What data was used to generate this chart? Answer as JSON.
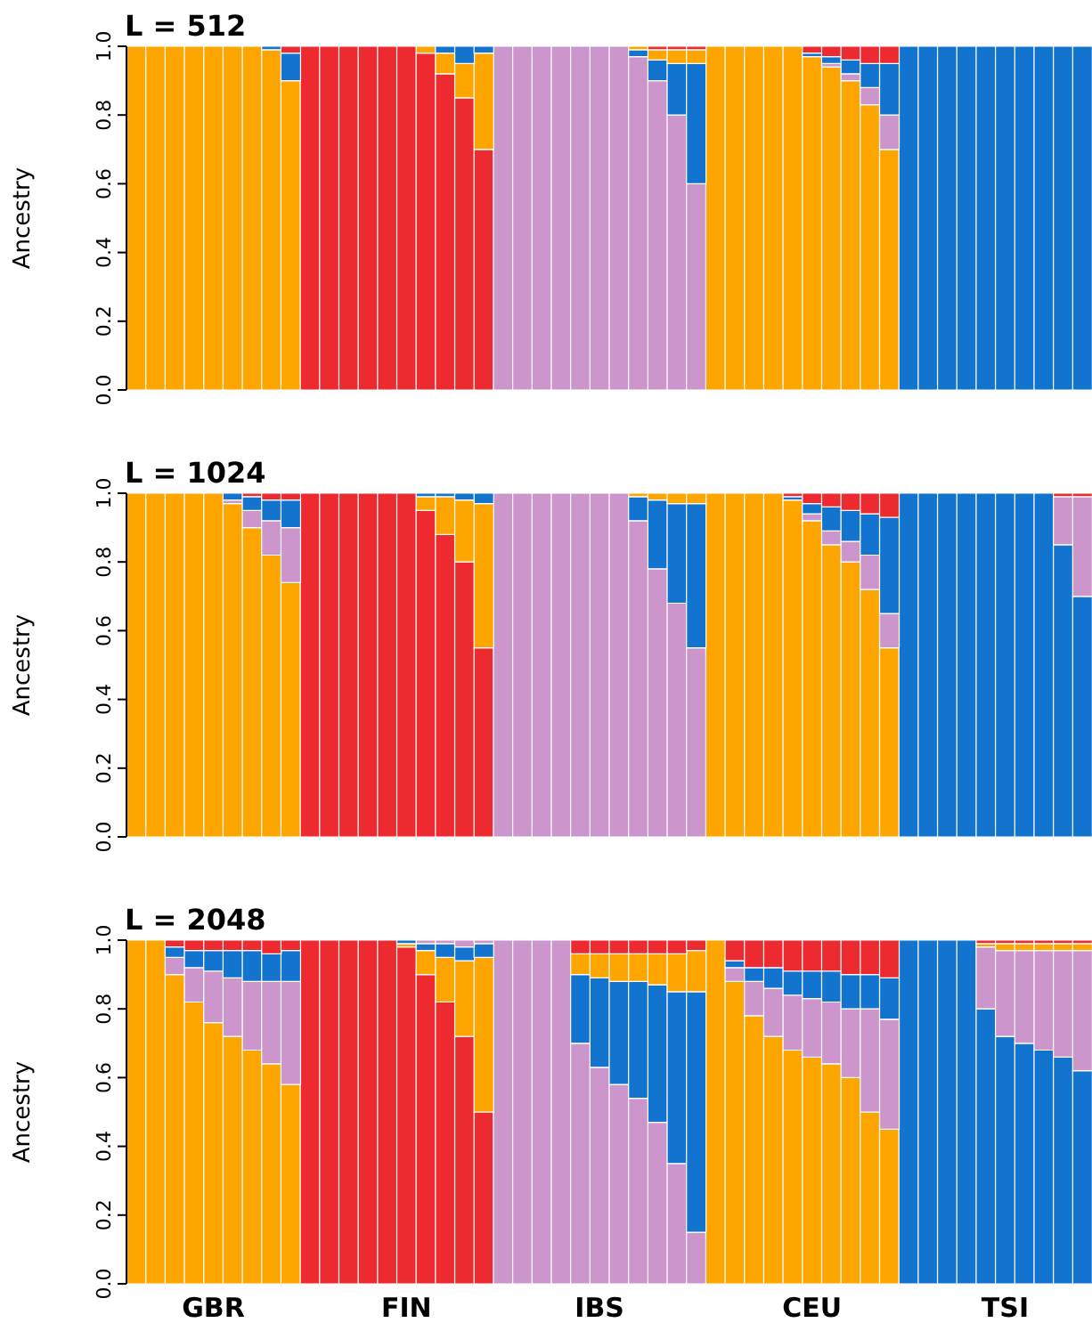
{
  "chart_data": [
    {
      "type": "bar",
      "title": "L = 512",
      "ylabel": "Ancestry",
      "stacked": true,
      "tick_labels": "y",
      "grid": false,
      "legend": false,
      "categories": [
        null,
        null,
        null,
        null,
        null,
        null,
        null,
        null,
        null,
        null,
        null,
        null,
        null,
        null,
        null,
        null,
        null,
        null,
        null,
        null,
        null,
        null,
        null,
        null,
        null,
        null,
        null,
        null,
        null,
        null,
        null,
        null,
        null,
        null,
        null,
        null,
        null,
        null,
        null,
        null,
        null,
        null,
        null,
        null,
        null,
        null,
        null,
        null,
        null,
        null
      ],
      "ylim": [
        0,
        1
      ],
      "yticks": [
        {
          "value": 0,
          "label": "0.0"
        },
        {
          "value": 0.2,
          "label": "0.2"
        },
        {
          "value": 0.4,
          "label": "0.4"
        },
        {
          "value": 0.6,
          "label": "0.6"
        },
        {
          "value": 0.8,
          "label": "0.8"
        },
        {
          "value": 1,
          "label": "1.0"
        }
      ],
      "series": [
        {
          "colors": [
            "#ffa500",
            "#ffa500",
            "#ffa500",
            "#ffa500",
            "#ffa500",
            "#ffa500",
            "#ffa500",
            "#ffa500",
            "#ffa500",
            "#ec2a2f",
            "#ec2a2f",
            "#ec2a2f",
            "#ec2a2f",
            "#ec2a2f",
            "#ec2a2f",
            "#ec2a2f",
            "#ec2a2f",
            "#ec2a2f",
            "#ec2a2f",
            "#cc95cc",
            "#cc95cc",
            "#cc95cc",
            "#cc95cc",
            "#cc95cc",
            "#cc95cc",
            "#cc95cc",
            "#cc95cc",
            "#cc95cc",
            "#cc95cc",
            "#cc95cc",
            "#ffa500",
            "#ffa500",
            "#ffa500",
            "#ffa500",
            "#ffa500",
            "#ffa500",
            "#ffa500",
            "#ffa500",
            "#ffa500",
            "#ffa500",
            "#1374cf",
            "#1374cf",
            "#1374cf",
            "#1374cf",
            "#1374cf",
            "#1374cf",
            "#1374cf",
            "#1374cf",
            "#1374cf",
            "#1374cf"
          ],
          "values": [
            1,
            1,
            1,
            1,
            1,
            1,
            1,
            0.99,
            0.9,
            1,
            1,
            1,
            1,
            1,
            1,
            0.98,
            0.92,
            0.85,
            0.7,
            1,
            1,
            1,
            1,
            1,
            1,
            1,
            0.97,
            0.9,
            0.8,
            0.6,
            1,
            1,
            1,
            1,
            1,
            0.97,
            0.94,
            0.9,
            0.83,
            0.7,
            1,
            1,
            1,
            1,
            1,
            1,
            1,
            1,
            1,
            1
          ]
        },
        {
          "colors": [
            "#cc95cc",
            "#cc95cc",
            "#cc95cc",
            "#cc95cc",
            "#cc95cc",
            "#cc95cc",
            "#cc95cc",
            "#cc95cc",
            "#cc95cc",
            "#ffa500",
            "#ffa500",
            "#ffa500",
            "#ffa500",
            "#ffa500",
            "#ffa500",
            "#ffa500",
            "#ffa500",
            "#ffa500",
            "#ffa500",
            "#1374cf",
            "#1374cf",
            "#1374cf",
            "#1374cf",
            "#1374cf",
            "#1374cf",
            "#1374cf",
            "#1374cf",
            "#1374cf",
            "#1374cf",
            "#1374cf",
            "#cc95cc",
            "#cc95cc",
            "#cc95cc",
            "#cc95cc",
            "#cc95cc",
            "#cc95cc",
            "#cc95cc",
            "#cc95cc",
            "#cc95cc",
            "#cc95cc",
            "#cc95cc",
            "#cc95cc",
            "#cc95cc",
            "#cc95cc",
            "#cc95cc",
            "#cc95cc",
            "#cc95cc",
            "#cc95cc",
            "#cc95cc",
            "#cc95cc"
          ],
          "values": [
            0,
            0,
            0,
            0,
            0,
            0,
            0,
            0,
            0,
            0,
            0,
            0,
            0,
            0,
            0,
            0.02,
            0.06,
            0.1,
            0.28,
            0,
            0,
            0,
            0,
            0,
            0,
            0,
            0.02,
            0.06,
            0.15,
            0.35,
            0,
            0,
            0,
            0,
            0,
            0,
            0.01,
            0.02,
            0.05,
            0.1,
            0,
            0,
            0,
            0,
            0,
            0,
            0,
            0,
            0,
            0
          ]
        },
        {
          "colors": [
            "#1374cf",
            "#1374cf",
            "#1374cf",
            "#1374cf",
            "#1374cf",
            "#1374cf",
            "#1374cf",
            "#1374cf",
            "#1374cf",
            "#1374cf",
            "#1374cf",
            "#1374cf",
            "#1374cf",
            "#1374cf",
            "#1374cf",
            "#1374cf",
            "#1374cf",
            "#1374cf",
            "#1374cf",
            "#ffa500",
            "#ffa500",
            "#ffa500",
            "#ffa500",
            "#ffa500",
            "#ffa500",
            "#ffa500",
            "#ffa500",
            "#ffa500",
            "#ffa500",
            "#ffa500",
            "#1374cf",
            "#1374cf",
            "#1374cf",
            "#1374cf",
            "#1374cf",
            "#1374cf",
            "#1374cf",
            "#1374cf",
            "#1374cf",
            "#1374cf",
            "#ffa500",
            "#ffa500",
            "#ffa500",
            "#ffa500",
            "#ffa500",
            "#ffa500",
            "#ffa500",
            "#ffa500",
            "#ffa500",
            "#ffa500"
          ],
          "values": [
            0,
            0,
            0,
            0,
            0,
            0,
            0,
            0.01,
            0.08,
            0,
            0,
            0,
            0,
            0,
            0,
            0,
            0.02,
            0.05,
            0.02,
            0,
            0,
            0,
            0,
            0,
            0,
            0,
            0.01,
            0.03,
            0.04,
            0.04,
            0,
            0,
            0,
            0,
            0,
            0.01,
            0.02,
            0.04,
            0.07,
            0.15,
            0,
            0,
            0,
            0,
            0,
            0,
            0,
            0,
            0,
            0
          ]
        },
        {
          "colors": [
            "#ec2a2f",
            "#ec2a2f",
            "#ec2a2f",
            "#ec2a2f",
            "#ec2a2f",
            "#ec2a2f",
            "#ec2a2f",
            "#ec2a2f",
            "#ec2a2f",
            "#cc95cc",
            "#cc95cc",
            "#cc95cc",
            "#cc95cc",
            "#cc95cc",
            "#cc95cc",
            "#cc95cc",
            "#cc95cc",
            "#cc95cc",
            "#cc95cc",
            "#ec2a2f",
            "#ec2a2f",
            "#ec2a2f",
            "#ec2a2f",
            "#ec2a2f",
            "#ec2a2f",
            "#ec2a2f",
            "#ec2a2f",
            "#ec2a2f",
            "#ec2a2f",
            "#ec2a2f",
            "#ec2a2f",
            "#ec2a2f",
            "#ec2a2f",
            "#ec2a2f",
            "#ec2a2f",
            "#ec2a2f",
            "#ec2a2f",
            "#ec2a2f",
            "#ec2a2f",
            "#ec2a2f",
            "#ec2a2f",
            "#ec2a2f",
            "#ec2a2f",
            "#ec2a2f",
            "#ec2a2f",
            "#ec2a2f",
            "#ec2a2f",
            "#ec2a2f",
            "#ec2a2f",
            "#ec2a2f"
          ],
          "values": [
            0,
            0,
            0,
            0,
            0,
            0,
            0,
            0,
            0.02,
            0,
            0,
            0,
            0,
            0,
            0,
            0,
            0,
            0,
            0,
            0,
            0,
            0,
            0,
            0,
            0,
            0,
            0,
            0.01,
            0.01,
            0.01,
            0,
            0,
            0,
            0,
            0,
            0.02,
            0.03,
            0.04,
            0.05,
            0.05,
            0,
            0,
            0,
            0,
            0,
            0,
            0,
            0,
            0,
            0
          ]
        }
      ]
    },
    {
      "type": "bar",
      "title": "L = 1024",
      "ylabel": "Ancestry",
      "stacked": true,
      "tick_labels": "y",
      "grid": false,
      "legend": false,
      "categories": [
        null,
        null,
        null,
        null,
        null,
        null,
        null,
        null,
        null,
        null,
        null,
        null,
        null,
        null,
        null,
        null,
        null,
        null,
        null,
        null,
        null,
        null,
        null,
        null,
        null,
        null,
        null,
        null,
        null,
        null,
        null,
        null,
        null,
        null,
        null,
        null,
        null,
        null,
        null,
        null,
        null,
        null,
        null,
        null,
        null,
        null,
        null,
        null,
        null,
        null
      ],
      "ylim": [
        0,
        1
      ],
      "yticks": [
        {
          "value": 0,
          "label": "0.0"
        },
        {
          "value": 0.2,
          "label": "0.2"
        },
        {
          "value": 0.4,
          "label": "0.4"
        },
        {
          "value": 0.6,
          "label": "0.6"
        },
        {
          "value": 0.8,
          "label": "0.8"
        },
        {
          "value": 1,
          "label": "1.0"
        }
      ],
      "series": [
        {
          "colors": [
            "#ffa500",
            "#ffa500",
            "#ffa500",
            "#ffa500",
            "#ffa500",
            "#ffa500",
            "#ffa500",
            "#ffa500",
            "#ffa500",
            "#ec2a2f",
            "#ec2a2f",
            "#ec2a2f",
            "#ec2a2f",
            "#ec2a2f",
            "#ec2a2f",
            "#ec2a2f",
            "#ec2a2f",
            "#ec2a2f",
            "#ec2a2f",
            "#cc95cc",
            "#cc95cc",
            "#cc95cc",
            "#cc95cc",
            "#cc95cc",
            "#cc95cc",
            "#cc95cc",
            "#cc95cc",
            "#cc95cc",
            "#cc95cc",
            "#cc95cc",
            "#ffa500",
            "#ffa500",
            "#ffa500",
            "#ffa500",
            "#ffa500",
            "#ffa500",
            "#ffa500",
            "#ffa500",
            "#ffa500",
            "#ffa500",
            "#1374cf",
            "#1374cf",
            "#1374cf",
            "#1374cf",
            "#1374cf",
            "#1374cf",
            "#1374cf",
            "#1374cf",
            "#1374cf",
            "#1374cf"
          ],
          "values": [
            1,
            1,
            1,
            1,
            1,
            0.97,
            0.9,
            0.82,
            0.74,
            1,
            1,
            1,
            1,
            1,
            1,
            0.95,
            0.88,
            0.8,
            0.55,
            1,
            1,
            1,
            1,
            1,
            1,
            1,
            0.92,
            0.78,
            0.68,
            0.55,
            1,
            1,
            1,
            1,
            0.98,
            0.92,
            0.85,
            0.8,
            0.72,
            0.55,
            1,
            1,
            1,
            1,
            1,
            1,
            1,
            1,
            0.85,
            0.7
          ]
        },
        {
          "colors": [
            "#cc95cc",
            "#cc95cc",
            "#cc95cc",
            "#cc95cc",
            "#cc95cc",
            "#cc95cc",
            "#cc95cc",
            "#cc95cc",
            "#cc95cc",
            "#ffa500",
            "#ffa500",
            "#ffa500",
            "#ffa500",
            "#ffa500",
            "#ffa500",
            "#ffa500",
            "#ffa500",
            "#ffa500",
            "#ffa500",
            "#1374cf",
            "#1374cf",
            "#1374cf",
            "#1374cf",
            "#1374cf",
            "#1374cf",
            "#1374cf",
            "#1374cf",
            "#1374cf",
            "#1374cf",
            "#1374cf",
            "#cc95cc",
            "#cc95cc",
            "#cc95cc",
            "#cc95cc",
            "#cc95cc",
            "#cc95cc",
            "#cc95cc",
            "#cc95cc",
            "#cc95cc",
            "#cc95cc",
            "#cc95cc",
            "#cc95cc",
            "#cc95cc",
            "#cc95cc",
            "#cc95cc",
            "#cc95cc",
            "#cc95cc",
            "#cc95cc",
            "#cc95cc",
            "#cc95cc"
          ],
          "values": [
            0,
            0,
            0,
            0,
            0,
            0.01,
            0.05,
            0.1,
            0.16,
            0,
            0,
            0,
            0,
            0,
            0,
            0.04,
            0.11,
            0.18,
            0.42,
            0,
            0,
            0,
            0,
            0,
            0,
            0,
            0.07,
            0.2,
            0.29,
            0.42,
            0,
            0,
            0,
            0,
            0,
            0.02,
            0.04,
            0.06,
            0.1,
            0.1,
            0,
            0,
            0,
            0,
            0,
            0,
            0,
            0,
            0.14,
            0.29
          ]
        },
        {
          "colors": [
            "#1374cf",
            "#1374cf",
            "#1374cf",
            "#1374cf",
            "#1374cf",
            "#1374cf",
            "#1374cf",
            "#1374cf",
            "#1374cf",
            "#1374cf",
            "#1374cf",
            "#1374cf",
            "#1374cf",
            "#1374cf",
            "#1374cf",
            "#1374cf",
            "#1374cf",
            "#1374cf",
            "#1374cf",
            "#ffa500",
            "#ffa500",
            "#ffa500",
            "#ffa500",
            "#ffa500",
            "#ffa500",
            "#ffa500",
            "#ffa500",
            "#ffa500",
            "#ffa500",
            "#ffa500",
            "#1374cf",
            "#1374cf",
            "#1374cf",
            "#1374cf",
            "#1374cf",
            "#1374cf",
            "#1374cf",
            "#1374cf",
            "#1374cf",
            "#1374cf",
            "#ffa500",
            "#ffa500",
            "#ffa500",
            "#ffa500",
            "#ffa500",
            "#ffa500",
            "#ffa500",
            "#ffa500",
            "#ffa500",
            "#ffa500"
          ],
          "values": [
            0,
            0,
            0,
            0,
            0,
            0.02,
            0.04,
            0.06,
            0.08,
            0,
            0,
            0,
            0,
            0,
            0,
            0.01,
            0.01,
            0.02,
            0.03,
            0,
            0,
            0,
            0,
            0,
            0,
            0,
            0.01,
            0.02,
            0.03,
            0.03,
            0,
            0,
            0,
            0,
            0.01,
            0.03,
            0.07,
            0.09,
            0.12,
            0.28,
            0,
            0,
            0,
            0,
            0,
            0,
            0,
            0,
            0,
            0
          ]
        },
        {
          "colors": [
            "#ec2a2f",
            "#ec2a2f",
            "#ec2a2f",
            "#ec2a2f",
            "#ec2a2f",
            "#ec2a2f",
            "#ec2a2f",
            "#ec2a2f",
            "#ec2a2f",
            "#cc95cc",
            "#cc95cc",
            "#cc95cc",
            "#cc95cc",
            "#cc95cc",
            "#cc95cc",
            "#cc95cc",
            "#cc95cc",
            "#cc95cc",
            "#cc95cc",
            "#ec2a2f",
            "#ec2a2f",
            "#ec2a2f",
            "#ec2a2f",
            "#ec2a2f",
            "#ec2a2f",
            "#ec2a2f",
            "#ec2a2f",
            "#ec2a2f",
            "#ec2a2f",
            "#ec2a2f",
            "#ec2a2f",
            "#ec2a2f",
            "#ec2a2f",
            "#ec2a2f",
            "#ec2a2f",
            "#ec2a2f",
            "#ec2a2f",
            "#ec2a2f",
            "#ec2a2f",
            "#ec2a2f",
            "#ec2a2f",
            "#ec2a2f",
            "#ec2a2f",
            "#ec2a2f",
            "#ec2a2f",
            "#ec2a2f",
            "#ec2a2f",
            "#ec2a2f",
            "#ec2a2f",
            "#ec2a2f"
          ],
          "values": [
            0,
            0,
            0,
            0,
            0,
            0,
            0.01,
            0.02,
            0.02,
            0,
            0,
            0,
            0,
            0,
            0,
            0,
            0,
            0,
            0,
            0,
            0,
            0,
            0,
            0,
            0,
            0,
            0,
            0,
            0,
            0,
            0,
            0,
            0,
            0,
            0.01,
            0.03,
            0.04,
            0.05,
            0.06,
            0.07,
            0,
            0,
            0,
            0,
            0,
            0,
            0,
            0,
            0.01,
            0.01
          ]
        }
      ]
    },
    {
      "type": "bar",
      "title": "L = 2048",
      "ylabel": "Ancestry",
      "stacked": true,
      "grid": false,
      "legend": false,
      "categories": [
        null,
        null,
        null,
        null,
        "GBR",
        null,
        null,
        null,
        null,
        null,
        null,
        null,
        null,
        null,
        "FIN",
        null,
        null,
        null,
        null,
        null,
        null,
        null,
        null,
        null,
        "IBS",
        null,
        null,
        null,
        null,
        null,
        null,
        null,
        null,
        null,
        null,
        "CEU",
        null,
        null,
        null,
        null,
        null,
        null,
        null,
        null,
        null,
        "TSI",
        null,
        null,
        null,
        null
      ],
      "ylim": [
        0,
        1
      ],
      "yticks": [
        {
          "value": 0,
          "label": "0.0"
        },
        {
          "value": 0.2,
          "label": "0.2"
        },
        {
          "value": 0.4,
          "label": "0.4"
        },
        {
          "value": 0.6,
          "label": "0.6"
        },
        {
          "value": 0.8,
          "label": "0.8"
        },
        {
          "value": 1,
          "label": "1.0"
        }
      ],
      "series": [
        {
          "colors": [
            "#ffa500",
            "#ffa500",
            "#ffa500",
            "#ffa500",
            "#ffa500",
            "#ffa500",
            "#ffa500",
            "#ffa500",
            "#ffa500",
            "#ec2a2f",
            "#ec2a2f",
            "#ec2a2f",
            "#ec2a2f",
            "#ec2a2f",
            "#ec2a2f",
            "#ec2a2f",
            "#ec2a2f",
            "#ec2a2f",
            "#ec2a2f",
            "#cc95cc",
            "#cc95cc",
            "#cc95cc",
            "#cc95cc",
            "#cc95cc",
            "#cc95cc",
            "#cc95cc",
            "#cc95cc",
            "#cc95cc",
            "#cc95cc",
            "#cc95cc",
            "#ffa500",
            "#ffa500",
            "#ffa500",
            "#ffa500",
            "#ffa500",
            "#ffa500",
            "#ffa500",
            "#ffa500",
            "#ffa500",
            "#ffa500",
            "#1374cf",
            "#1374cf",
            "#1374cf",
            "#1374cf",
            "#1374cf",
            "#1374cf",
            "#1374cf",
            "#1374cf",
            "#1374cf",
            "#1374cf"
          ],
          "values": [
            1,
            1,
            0.9,
            0.82,
            0.76,
            0.72,
            0.68,
            0.64,
            0.58,
            1,
            1,
            1,
            1,
            1,
            0.98,
            0.9,
            0.82,
            0.72,
            0.5,
            1,
            1,
            1,
            1,
            0.7,
            0.63,
            0.58,
            0.54,
            0.47,
            0.35,
            0.15,
            1,
            0.88,
            0.78,
            0.72,
            0.68,
            0.66,
            0.64,
            0.6,
            0.5,
            0.45,
            1,
            1,
            1,
            1,
            0.8,
            0.72,
            0.7,
            0.68,
            0.66,
            0.62
          ]
        },
        {
          "colors": [
            "#cc95cc",
            "#cc95cc",
            "#cc95cc",
            "#cc95cc",
            "#cc95cc",
            "#cc95cc",
            "#cc95cc",
            "#cc95cc",
            "#cc95cc",
            "#ffa500",
            "#ffa500",
            "#ffa500",
            "#ffa500",
            "#ffa500",
            "#ffa500",
            "#ffa500",
            "#ffa500",
            "#ffa500",
            "#ffa500",
            "#1374cf",
            "#1374cf",
            "#1374cf",
            "#1374cf",
            "#1374cf",
            "#1374cf",
            "#1374cf",
            "#1374cf",
            "#1374cf",
            "#1374cf",
            "#1374cf",
            "#cc95cc",
            "#cc95cc",
            "#cc95cc",
            "#cc95cc",
            "#cc95cc",
            "#cc95cc",
            "#cc95cc",
            "#cc95cc",
            "#cc95cc",
            "#cc95cc",
            "#cc95cc",
            "#cc95cc",
            "#cc95cc",
            "#cc95cc",
            "#cc95cc",
            "#cc95cc",
            "#cc95cc",
            "#cc95cc",
            "#cc95cc",
            "#cc95cc"
          ],
          "values": [
            0,
            0,
            0.05,
            0.1,
            0.15,
            0.17,
            0.2,
            0.24,
            0.3,
            0,
            0,
            0,
            0,
            0,
            0.01,
            0.07,
            0.13,
            0.22,
            0.45,
            0,
            0,
            0,
            0,
            0.2,
            0.26,
            0.3,
            0.34,
            0.4,
            0.5,
            0.7,
            0,
            0.04,
            0.1,
            0.14,
            0.16,
            0.17,
            0.18,
            0.2,
            0.3,
            0.32,
            0,
            0,
            0,
            0,
            0.18,
            0.25,
            0.27,
            0.29,
            0.31,
            0.35
          ]
        },
        {
          "colors": [
            "#1374cf",
            "#1374cf",
            "#1374cf",
            "#1374cf",
            "#1374cf",
            "#1374cf",
            "#1374cf",
            "#1374cf",
            "#1374cf",
            "#1374cf",
            "#1374cf",
            "#1374cf",
            "#1374cf",
            "#1374cf",
            "#1374cf",
            "#1374cf",
            "#1374cf",
            "#1374cf",
            "#1374cf",
            "#ffa500",
            "#ffa500",
            "#ffa500",
            "#ffa500",
            "#ffa500",
            "#ffa500",
            "#ffa500",
            "#ffa500",
            "#ffa500",
            "#ffa500",
            "#ffa500",
            "#1374cf",
            "#1374cf",
            "#1374cf",
            "#1374cf",
            "#1374cf",
            "#1374cf",
            "#1374cf",
            "#1374cf",
            "#1374cf",
            "#1374cf",
            "#ffa500",
            "#ffa500",
            "#ffa500",
            "#ffa500",
            "#ffa500",
            "#ffa500",
            "#ffa500",
            "#ffa500",
            "#ffa500",
            "#ffa500"
          ],
          "values": [
            0,
            0,
            0.03,
            0.05,
            0.06,
            0.08,
            0.09,
            0.08,
            0.09,
            0,
            0,
            0,
            0,
            0,
            0.01,
            0.02,
            0.04,
            0.04,
            0.04,
            0,
            0,
            0,
            0,
            0.06,
            0.07,
            0.08,
            0.08,
            0.09,
            0.11,
            0.12,
            0,
            0.02,
            0.04,
            0.06,
            0.07,
            0.08,
            0.09,
            0.1,
            0.1,
            0.12,
            0,
            0,
            0,
            0,
            0.01,
            0.02,
            0.02,
            0.02,
            0.02,
            0.02
          ]
        },
        {
          "colors": [
            "#ec2a2f",
            "#ec2a2f",
            "#ec2a2f",
            "#ec2a2f",
            "#ec2a2f",
            "#ec2a2f",
            "#ec2a2f",
            "#ec2a2f",
            "#ec2a2f",
            "#cc95cc",
            "#cc95cc",
            "#cc95cc",
            "#cc95cc",
            "#cc95cc",
            "#cc95cc",
            "#cc95cc",
            "#cc95cc",
            "#cc95cc",
            "#cc95cc",
            "#ec2a2f",
            "#ec2a2f",
            "#ec2a2f",
            "#ec2a2f",
            "#ec2a2f",
            "#ec2a2f",
            "#ec2a2f",
            "#ec2a2f",
            "#ec2a2f",
            "#ec2a2f",
            "#ec2a2f",
            "#ec2a2f",
            "#ec2a2f",
            "#ec2a2f",
            "#ec2a2f",
            "#ec2a2f",
            "#ec2a2f",
            "#ec2a2f",
            "#ec2a2f",
            "#ec2a2f",
            "#ec2a2f",
            "#ec2a2f",
            "#ec2a2f",
            "#ec2a2f",
            "#ec2a2f",
            "#ec2a2f",
            "#ec2a2f",
            "#ec2a2f",
            "#ec2a2f",
            "#ec2a2f",
            "#ec2a2f"
          ],
          "values": [
            0,
            0,
            0.02,
            0.03,
            0.03,
            0.03,
            0.03,
            0.04,
            0.03,
            0,
            0,
            0,
            0,
            0,
            0,
            0.01,
            0.01,
            0.02,
            0.01,
            0,
            0,
            0,
            0,
            0.04,
            0.04,
            0.04,
            0.04,
            0.04,
            0.04,
            0.03,
            0,
            0.06,
            0.08,
            0.08,
            0.09,
            0.09,
            0.09,
            0.1,
            0.1,
            0.11,
            0,
            0,
            0,
            0,
            0.01,
            0.01,
            0.01,
            0.01,
            0.01,
            0.01
          ]
        }
      ]
    }
  ]
}
